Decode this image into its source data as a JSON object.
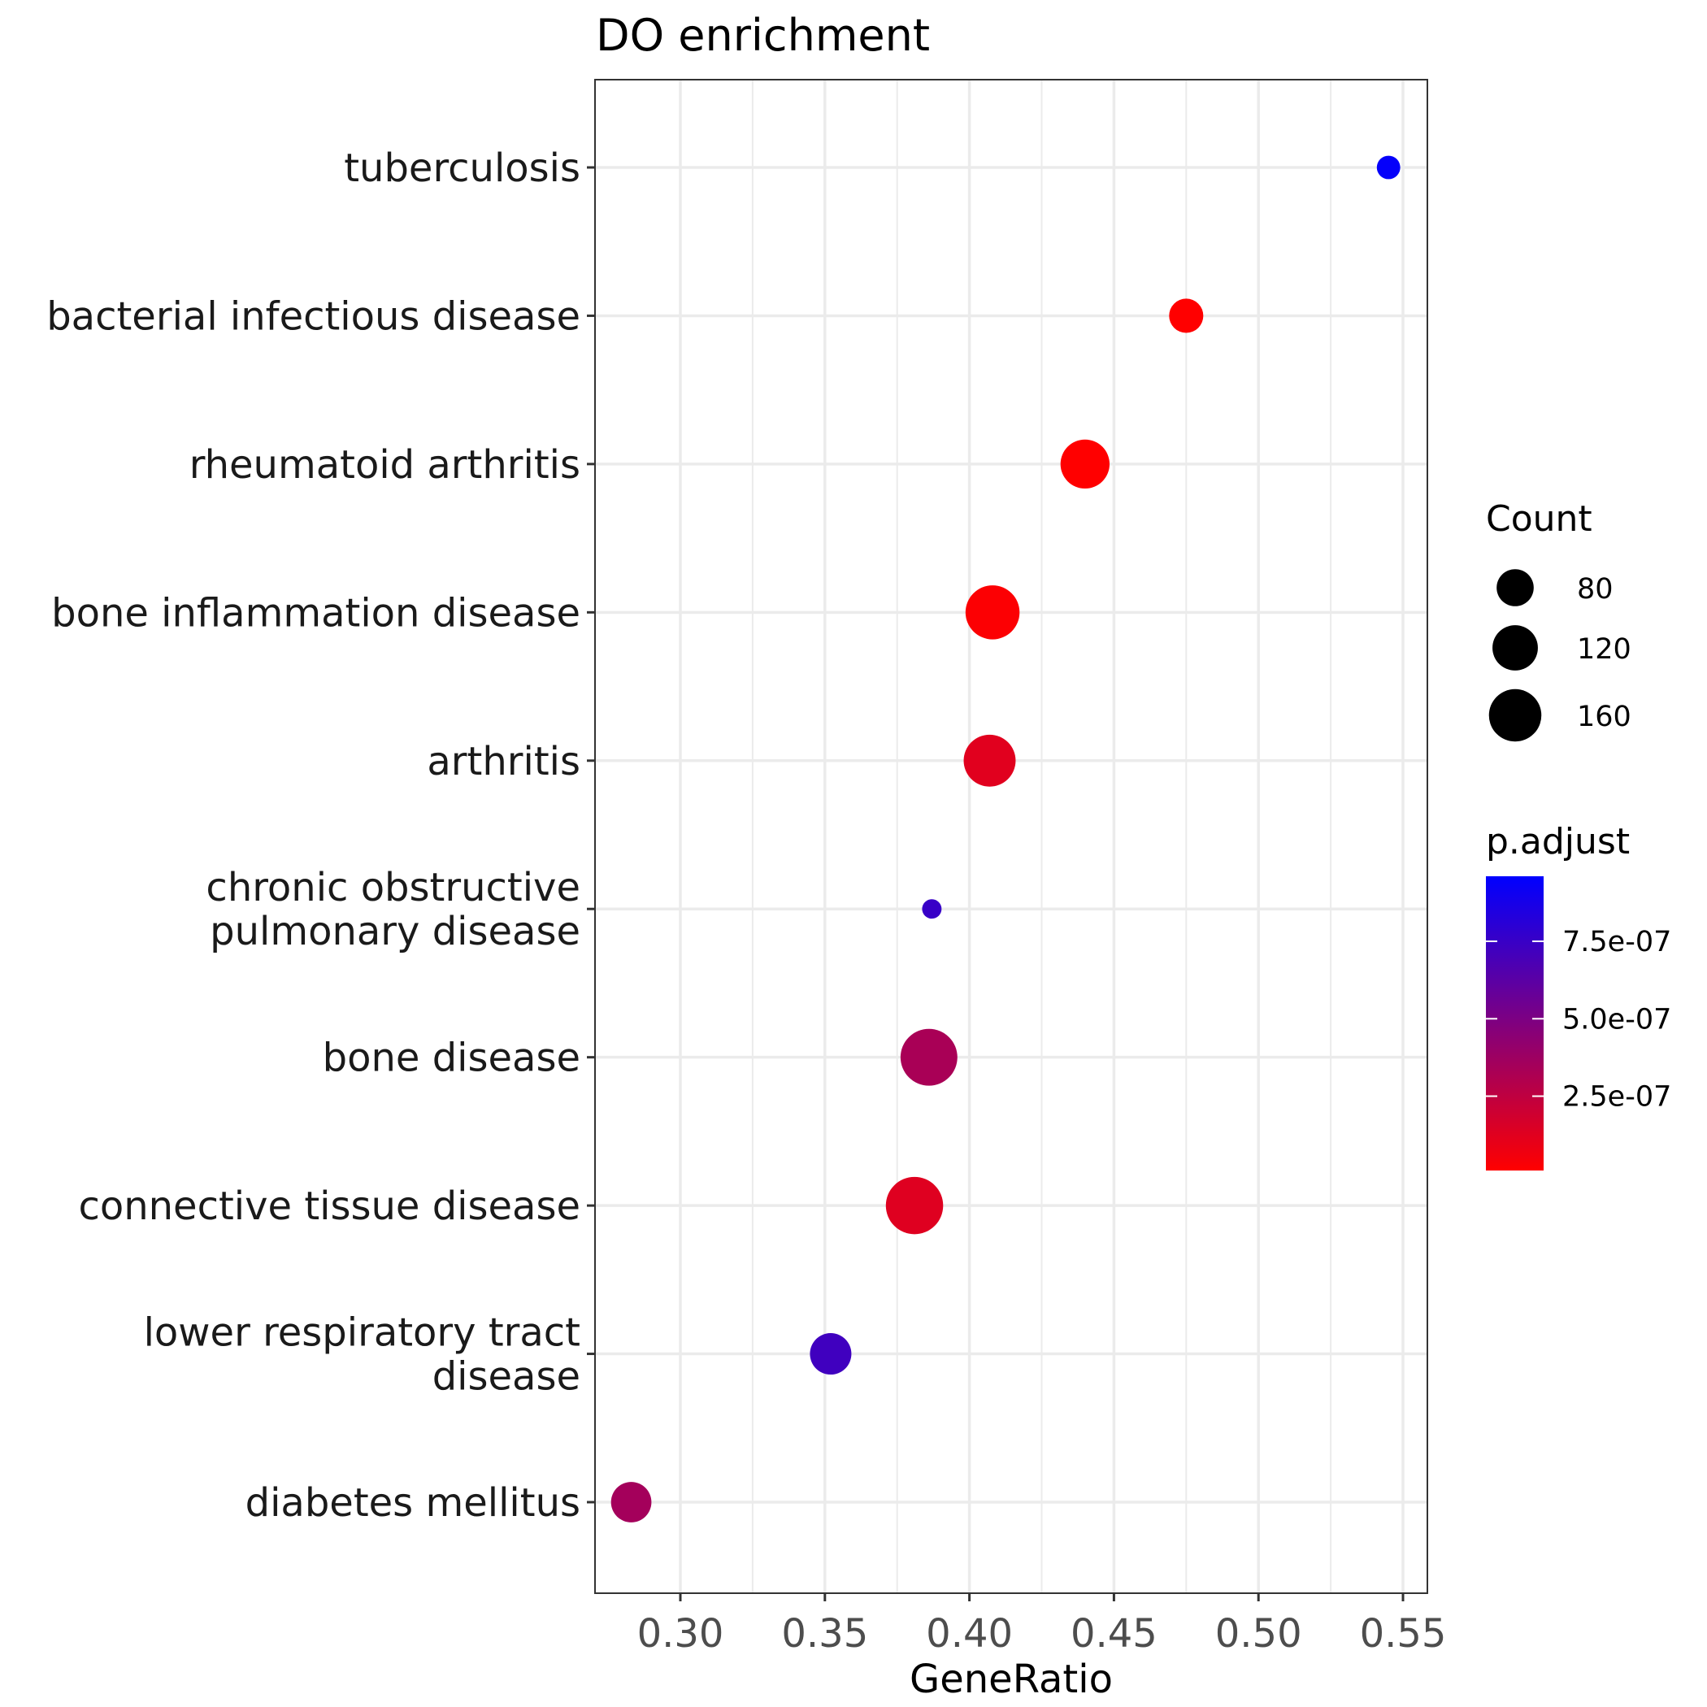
{
  "chart_data": {
    "type": "scatter",
    "title": "DO enrichment",
    "xlabel": "GeneRatio",
    "ylabel": "",
    "xlim": [
      0.27,
      0.557
    ],
    "xticks": [
      0.3,
      0.35,
      0.4,
      0.45,
      0.5,
      0.55
    ],
    "xtick_labels": [
      "0.30",
      "0.35",
      "0.40",
      "0.45",
      "0.50",
      "0.55"
    ],
    "grid": true,
    "legend_position": "right",
    "categories": [
      [
        "tuberculosis"
      ],
      [
        "bacterial infectious disease"
      ],
      [
        "rheumatoid arthritis"
      ],
      [
        "bone inflammation disease"
      ],
      [
        "arthritis"
      ],
      [
        "chronic obstructive",
        "pulmonary disease"
      ],
      [
        "bone disease"
      ],
      [
        "connective tissue disease"
      ],
      [
        "lower respiratory tract",
        "disease"
      ],
      [
        "diabetes mellitus"
      ]
    ],
    "points": [
      {
        "label": "tuberculosis",
        "x": 0.545,
        "count": 32,
        "p_adjust": 9.4e-07
      },
      {
        "label": "bacterial infectious disease",
        "x": 0.475,
        "count": 68,
        "p_adjust": 1e-08
      },
      {
        "label": "rheumatoid arthritis",
        "x": 0.44,
        "count": 140,
        "p_adjust": 1e-08
      },
      {
        "label": "bone inflammation disease",
        "x": 0.408,
        "count": 170,
        "p_adjust": 2e-08
      },
      {
        "label": "arthritis",
        "x": 0.407,
        "count": 157,
        "p_adjust": 1.2e-07
      },
      {
        "label": "chronic obstructive pulmonary disease",
        "x": 0.387,
        "count": 22,
        "p_adjust": 7.5e-07
      },
      {
        "label": "bone disease",
        "x": 0.386,
        "count": 188,
        "p_adjust": 3.3e-07
      },
      {
        "label": "connective tissue disease",
        "x": 0.381,
        "count": 191,
        "p_adjust": 1.3e-07
      },
      {
        "label": "lower respiratory tract disease",
        "x": 0.352,
        "count": 100,
        "p_adjust": 7.2e-07
      },
      {
        "label": "diabetes mellitus",
        "x": 0.283,
        "count": 95,
        "p_adjust": 3.5e-07
      }
    ],
    "size_legend": {
      "title": "Count",
      "breaks": [
        80,
        120,
        160
      ],
      "labels": [
        "80",
        "120",
        "160"
      ]
    },
    "color_legend": {
      "title": "p.adjust",
      "range": [
        1e-08,
        9.6e-07
      ],
      "low_color": "#ff0000",
      "high_color": "#0000ff",
      "breaks": [
        2.5e-07,
        5e-07,
        7.5e-07
      ],
      "labels": [
        "2.5e-07",
        "5.0e-07",
        "7.5e-07"
      ]
    }
  }
}
